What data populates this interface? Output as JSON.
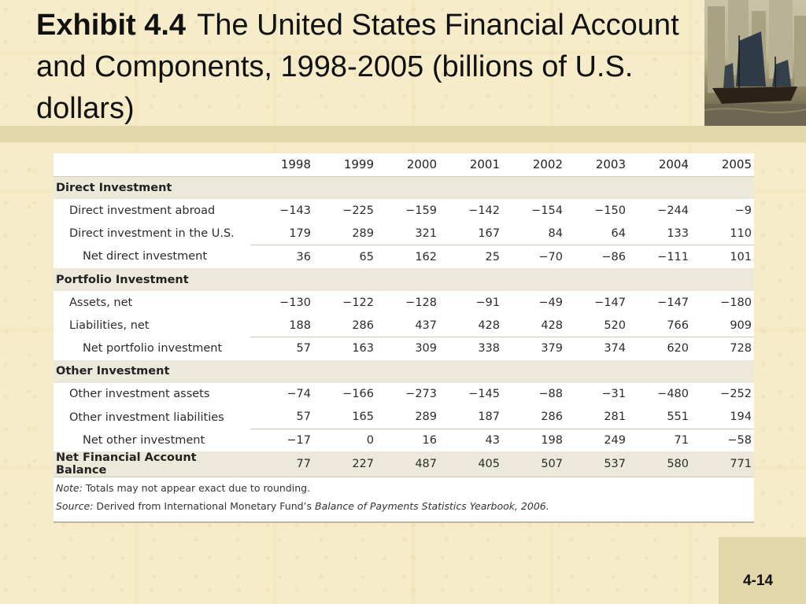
{
  "title": {
    "exhibit": "Exhibit 4.4",
    "text": "The United States Financial Account and Components, 1998-2005 (billions of U.S. dollars)"
  },
  "table": {
    "years": [
      "1998",
      "1999",
      "2000",
      "2001",
      "2002",
      "2003",
      "2004",
      "2005"
    ],
    "sections": [
      {
        "heading": "Direct Investment",
        "rows": [
          {
            "label": "Direct investment abroad",
            "values": [
              "−143",
              "−225",
              "−159",
              "−142",
              "−154",
              "−150",
              "−244",
              "−9"
            ]
          },
          {
            "label": "Direct investment in the U.S.",
            "values": [
              "179",
              "289",
              "321",
              "167",
              "84",
              "64",
              "133",
              "110"
            ]
          }
        ],
        "net": {
          "label": "Net direct investment",
          "values": [
            "36",
            "65",
            "162",
            "25",
            "−70",
            "−86",
            "−111",
            "101"
          ]
        }
      },
      {
        "heading": "Portfolio Investment",
        "rows": [
          {
            "label": "Assets, net",
            "values": [
              "−130",
              "−122",
              "−128",
              "−91",
              "−49",
              "−147",
              "−147",
              "−180"
            ]
          },
          {
            "label": "Liabilities, net",
            "values": [
              "188",
              "286",
              "437",
              "428",
              "428",
              "520",
              "766",
              "909"
            ]
          }
        ],
        "net": {
          "label": "Net portfolio investment",
          "values": [
            "57",
            "163",
            "309",
            "338",
            "379",
            "374",
            "620",
            "728"
          ]
        }
      },
      {
        "heading": "Other Investment",
        "rows": [
          {
            "label": "Other investment assets",
            "values": [
              "−74",
              "−166",
              "−273",
              "−145",
              "−88",
              "−31",
              "−480",
              "−252"
            ]
          },
          {
            "label": "Other investment liabilities",
            "values": [
              "57",
              "165",
              "289",
              "187",
              "286",
              "281",
              "551",
              "194"
            ]
          }
        ],
        "net": {
          "label": "Net other investment",
          "values": [
            "−17",
            "0",
            "16",
            "43",
            "198",
            "249",
            "71",
            "−58"
          ]
        }
      }
    ],
    "total": {
      "label": "Net Financial Account Balance",
      "values": [
        "77",
        "227",
        "487",
        "405",
        "507",
        "537",
        "580",
        "771"
      ]
    }
  },
  "notes": {
    "note_label": "Note:",
    "note_text": "Totals may not appear exact due to rounding.",
    "source_label": "Source:",
    "source_text": "Derived from International Monetary Fund’s",
    "source_title": "Balance of Payments Statistics Yearbook, 2006."
  },
  "slide_number": "4-14"
}
